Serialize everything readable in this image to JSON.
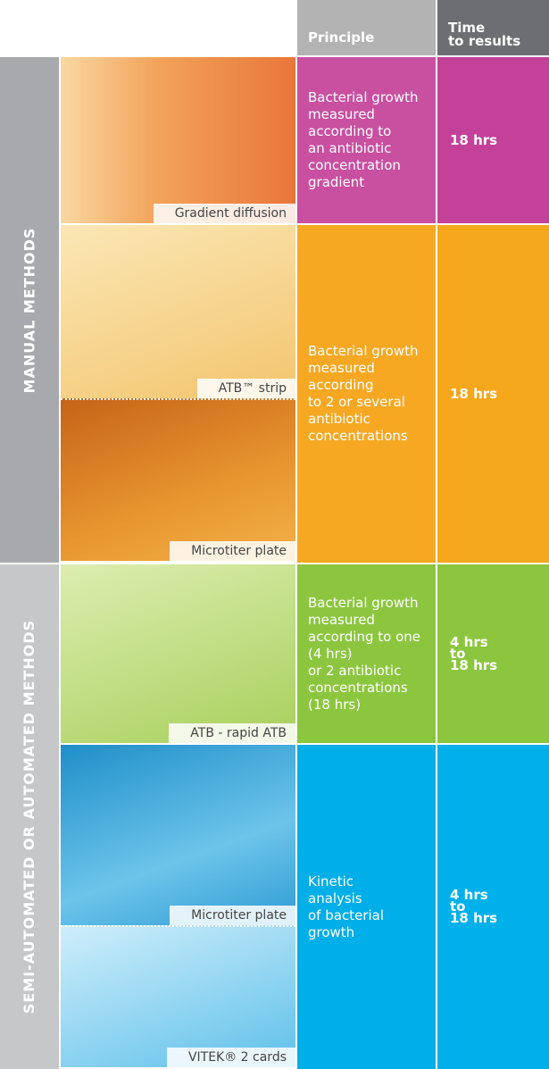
{
  "header": {
    "principle": "Principle",
    "time_to_results": [
      "Time",
      "to results"
    ]
  },
  "groups": [
    {
      "label": "MANUAL METHODS",
      "rows": [
        {
          "methods": [
            "Gradient diffusion"
          ],
          "principle": [
            "Bacterial growth",
            "measured",
            "according to",
            "an antibiotic",
            "concentration",
            "gradient"
          ],
          "time": [
            "18 hrs"
          ]
        },
        {
          "methods": [
            "ATB™ strip",
            "Microtiter plate"
          ],
          "principle": [
            "Bacterial growth",
            "measured",
            "according",
            "to 2 or several",
            "antibiotic",
            "concentrations"
          ],
          "time": [
            "18 hrs"
          ]
        }
      ]
    },
    {
      "label": "SEMI-AUTOMATED OR AUTOMATED METHODS",
      "rows": [
        {
          "methods": [
            "ATB - rapid ATB"
          ],
          "principle": [
            "Bacterial growth",
            "measured",
            "according to one",
            "(4 hrs)",
            "or 2 antibiotic",
            "concentrations",
            "(18 hrs)"
          ],
          "time": [
            "4 hrs",
            "to",
            "18 hrs"
          ]
        },
        {
          "methods": [
            "Microtiter plate",
            "VITEK® 2 cards"
          ],
          "principle": [
            "Kinetic",
            "analysis",
            "of bacterial",
            "growth"
          ],
          "time": [
            "4 hrs",
            "to",
            "18 hrs"
          ]
        }
      ]
    }
  ]
}
